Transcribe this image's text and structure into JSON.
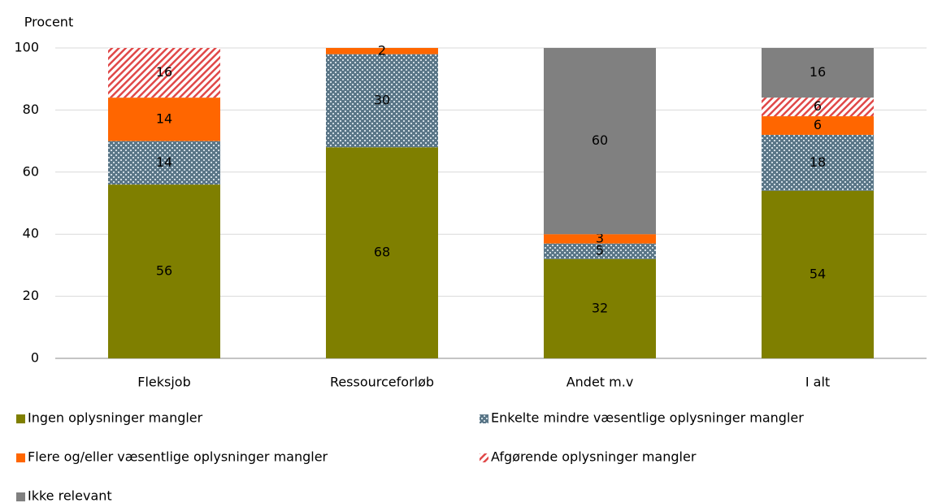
{
  "chart_data": {
    "type": "stacked_bar",
    "y_label": "Procent",
    "categories": [
      "Fleksjob",
      "Ressourceforløb",
      "Andet m.v",
      "I alt"
    ],
    "series": [
      {
        "name": "Ingen oplysninger mangler",
        "color": "#7f7f00",
        "values": [
          56,
          68,
          32,
          54
        ]
      },
      {
        "name": "Enkelte mindre væsentlige oplysninger mangler",
        "color": "#5a7687",
        "pattern": "dots",
        "values": [
          14,
          30,
          5,
          18
        ]
      },
      {
        "name": "Flere og/eller væsentlige oplysninger mangler",
        "color": "#ff6600",
        "values": [
          14,
          2,
          3,
          6
        ]
      },
      {
        "name": "Afgørende oplysninger mangler",
        "color": "#e04848",
        "pattern": "hatch",
        "values": [
          16,
          0,
          0,
          6
        ]
      },
      {
        "name": "Ikke relevant",
        "color": "#808080",
        "values": [
          0,
          0,
          60,
          16
        ]
      }
    ],
    "ylim": [
      0,
      100
    ],
    "yticks": [
      0,
      20,
      40,
      60,
      80,
      100
    ],
    "grid": true
  }
}
